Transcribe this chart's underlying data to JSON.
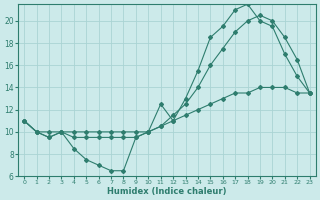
{
  "xlabel": "Humidex (Indice chaleur)",
  "xlim": [
    -0.5,
    23.5
  ],
  "ylim": [
    6,
    21.5
  ],
  "yticks": [
    6,
    8,
    10,
    12,
    14,
    16,
    18,
    20
  ],
  "xticks": [
    0,
    1,
    2,
    3,
    4,
    5,
    6,
    7,
    8,
    9,
    10,
    11,
    12,
    13,
    14,
    15,
    16,
    17,
    18,
    19,
    20,
    21,
    22,
    23
  ],
  "line_color": "#2e7d6e",
  "bg_color": "#cceaea",
  "grid_color": "#aad4d4",
  "line1_x": [
    0,
    1,
    2,
    3,
    4,
    5,
    6,
    7,
    8,
    9,
    10,
    11,
    12,
    13,
    14,
    15,
    16,
    17,
    18,
    19,
    20,
    21,
    22,
    23
  ],
  "line1_y": [
    11,
    10,
    9.5,
    10,
    8.5,
    7.5,
    7.0,
    6.5,
    6.5,
    9.5,
    10,
    12.5,
    11,
    13,
    15.5,
    18.5,
    19.5,
    21,
    21.5,
    20,
    19.5,
    17,
    15,
    13.5
  ],
  "line2_x": [
    0,
    1,
    2,
    3,
    4,
    5,
    6,
    7,
    8,
    9,
    10,
    11,
    12,
    13,
    14,
    15,
    16,
    17,
    18,
    19,
    20,
    21,
    22,
    23
  ],
  "line2_y": [
    11,
    10,
    10,
    10,
    10,
    10,
    10,
    10,
    10,
    10,
    10,
    10.5,
    11.5,
    12.5,
    14,
    16,
    17.5,
    19,
    20,
    20.5,
    20,
    18.5,
    16.5,
    13.5
  ],
  "line3_x": [
    0,
    1,
    2,
    3,
    4,
    5,
    6,
    7,
    8,
    9,
    10,
    11,
    12,
    13,
    14,
    15,
    16,
    17,
    18,
    19,
    20,
    21,
    22,
    23
  ],
  "line3_y": [
    11,
    10,
    9.5,
    10,
    9.5,
    9.5,
    9.5,
    9.5,
    9.5,
    9.5,
    10,
    10.5,
    11,
    11.5,
    12,
    12.5,
    13,
    13.5,
    13.5,
    14,
    14,
    14,
    13.5,
    13.5
  ]
}
